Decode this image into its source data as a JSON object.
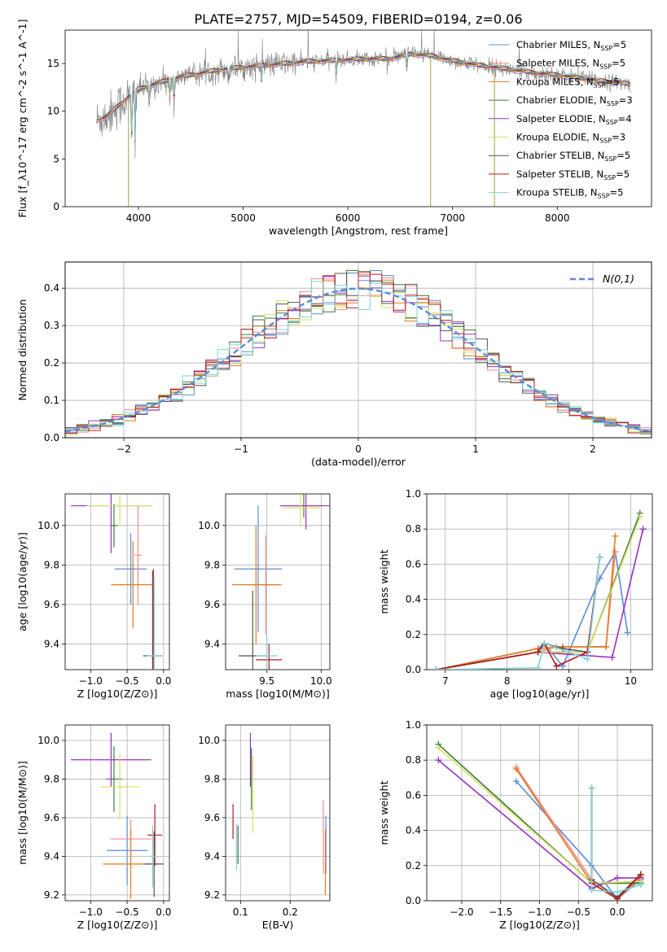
{
  "figure_title": "PLATE=2757, MJD=54509, FIBERID=0194, z=0.06",
  "colors": {
    "chabrier_miles": "#5b8bd6",
    "salpeter_miles": "#f28c8c",
    "kroupa_miles": "#e07a1f",
    "chabrier_elodie": "#3a7a3a",
    "salpeter_elodie": "#9b30c0",
    "kroupa_elodie": "#d9e066",
    "chabrier_stelib": "#555555",
    "salpeter_stelib": "#b01c1c",
    "kroupa_stelib": "#7fd4d9",
    "spectrum": "#808080",
    "gaussian": "#5b8bd6"
  },
  "legend": [
    {
      "model": "Chabrier MILES",
      "n": "5",
      "color_key": "chabrier_miles"
    },
    {
      "model": "Salpeter MILES",
      "n": "5",
      "color_key": "salpeter_miles"
    },
    {
      "model": "Kroupa MILES",
      "n": "5",
      "color_key": "kroupa_miles"
    },
    {
      "model": "Chabrier ELODIE",
      "n": "3",
      "color_key": "chabrier_elodie"
    },
    {
      "model": "Salpeter ELODIE",
      "n": "4",
      "color_key": "salpeter_elodie"
    },
    {
      "model": "Kroupa ELODIE",
      "n": "3",
      "color_key": "kroupa_elodie"
    },
    {
      "model": "Chabrier STELIB",
      "n": "5",
      "color_key": "chabrier_stelib"
    },
    {
      "model": "Salpeter STELIB",
      "n": "5",
      "color_key": "salpeter_stelib"
    },
    {
      "model": "Kroupa STELIB",
      "n": "5",
      "color_key": "kroupa_stelib"
    }
  ],
  "chart_data": [
    {
      "id": "spectrum",
      "type": "line",
      "xlabel": "wavelength [Angstrom, rest frame]",
      "ylabel": "Flux [f_λ10^-17 erg cm^-2 s^-1 A^-1]",
      "xlim": [
        3300,
        8900
      ],
      "ylim": [
        0,
        18.5
      ],
      "xticks": [
        4000,
        5000,
        6000,
        7000,
        8000
      ],
      "yticks": [
        0,
        5,
        10,
        15
      ],
      "grid": false,
      "legend_position": "right",
      "continuum": [
        [
          3600,
          9.0
        ],
        [
          3700,
          9.5
        ],
        [
          3800,
          10.5
        ],
        [
          3900,
          11.5
        ],
        [
          4000,
          12.3
        ],
        [
          4200,
          13.0
        ],
        [
          4400,
          13.6
        ],
        [
          4600,
          14.0
        ],
        [
          4800,
          14.4
        ],
        [
          5000,
          14.6
        ],
        [
          5200,
          14.8
        ],
        [
          5400,
          15.0
        ],
        [
          5600,
          15.2
        ],
        [
          5800,
          15.3
        ],
        [
          6000,
          15.4
        ],
        [
          6200,
          15.5
        ],
        [
          6400,
          15.5
        ],
        [
          6600,
          16.0
        ],
        [
          6800,
          15.8
        ],
        [
          7000,
          15.3
        ],
        [
          7200,
          14.9
        ],
        [
          7400,
          14.6
        ],
        [
          7600,
          14.3
        ],
        [
          7800,
          14.0
        ],
        [
          8000,
          13.8
        ],
        [
          8200,
          13.5
        ],
        [
          8400,
          13.2
        ],
        [
          8600,
          13.0
        ],
        [
          8700,
          12.8
        ]
      ],
      "dips": [
        [
          3934,
          5.5
        ],
        [
          3968,
          6.0
        ],
        [
          4102,
          10.0
        ],
        [
          4300,
          11.0
        ],
        [
          4340,
          9.5
        ],
        [
          4861,
          12.5
        ],
        [
          5175,
          12.8
        ],
        [
          5890,
          13.5
        ],
        [
          6563,
          14.0
        ]
      ],
      "spikes": [
        [
          3905,
          0.0
        ],
        [
          6790,
          0.0
        ],
        [
          7400,
          0.0
        ]
      ]
    },
    {
      "id": "residuals",
      "type": "histogram",
      "xlabel": "(data-model)/error",
      "ylabel": "Normed distribution",
      "xlim": [
        -2.5,
        2.5
      ],
      "ylim": [
        0,
        0.47
      ],
      "xticks": [
        -2,
        -1,
        0,
        1,
        2
      ],
      "yticks": [
        0.0,
        0.1,
        0.2,
        0.3,
        0.4
      ],
      "grid": true,
      "legend": "N(0,1)",
      "legend_position": "top-right",
      "bin_width": 0.1
    },
    {
      "id": "age_vs_z",
      "type": "errorbar",
      "xlabel": "Z [log10(Z/Z⊙)]",
      "ylabel": "age [log10(age/yr)]",
      "xlim": [
        -1.35,
        0.08
      ],
      "ylim": [
        9.27,
        10.16
      ],
      "xticks": [
        -1.0,
        -0.5,
        0.0
      ],
      "yticks": [
        9.4,
        9.6,
        9.8,
        10.0
      ],
      "grid": true,
      "points": [
        {
          "c": "chabrier_miles",
          "x": -0.45,
          "xe": 0.22,
          "y": 9.78,
          "ye": 0.18
        },
        {
          "c": "salpeter_miles",
          "x": -0.35,
          "xe": 0.05,
          "y": 9.85,
          "ye": 0.25
        },
        {
          "c": "kroupa_miles",
          "x": -0.42,
          "xe": 0.3,
          "y": 9.7,
          "ye": 0.22
        },
        {
          "c": "chabrier_elodie",
          "x": -0.68,
          "xe": 0.05,
          "y": 10.0,
          "ye": 0.11
        },
        {
          "c": "salpeter_elodie",
          "x": -0.72,
          "xe": 0.55,
          "y": 10.1,
          "ye": 0.24
        },
        {
          "c": "kroupa_elodie",
          "x": -0.6,
          "xe": 0.45,
          "y": 10.1,
          "ye": 0.1
        },
        {
          "c": "chabrier_stelib",
          "x": -0.15,
          "xe": 0.13,
          "y": 9.34,
          "ye": 0.43
        },
        {
          "c": "salpeter_stelib",
          "x": -0.14,
          "xe": 0.02,
          "y": 9.33,
          "ye": 0.45
        },
        {
          "c": "kroupa_stelib",
          "x": -0.13,
          "xe": 0.1,
          "y": 9.34,
          "ye": 0.4
        }
      ]
    },
    {
      "id": "age_vs_mass",
      "type": "errorbar",
      "xlabel": "mass [log10(M/M⊙)]",
      "ylabel": "",
      "xlim": [
        9.12,
        10.08
      ],
      "ylim": [
        9.27,
        10.16
      ],
      "xticks": [
        9.5,
        10.0
      ],
      "yticks": [
        9.4,
        9.6,
        9.8,
        10.0
      ],
      "grid": true,
      "points": [
        {
          "c": "chabrier_miles",
          "x": 9.42,
          "xe": 0.22,
          "y": 9.78,
          "ye": 0.32
        },
        {
          "c": "salpeter_miles",
          "x": 9.49,
          "xe": 0.15,
          "y": 9.7,
          "ye": 0.25
        },
        {
          "c": "kroupa_miles",
          "x": 9.4,
          "xe": 0.22,
          "y": 9.7,
          "ye": 0.3
        },
        {
          "c": "chabrier_elodie",
          "x": 9.84,
          "xe": 0.18,
          "y": 10.1,
          "ye": 0.06
        },
        {
          "c": "salpeter_elodie",
          "x": 9.86,
          "xe": 0.24,
          "y": 10.1,
          "ye": 0.12
        },
        {
          "c": "kroupa_elodie",
          "x": 9.81,
          "xe": 0.18,
          "y": 10.09,
          "ye": 0.09
        },
        {
          "c": "chabrier_stelib",
          "x": 9.37,
          "xe": 0.13,
          "y": 9.34,
          "ye": 0.33
        },
        {
          "c": "salpeter_stelib",
          "x": 9.52,
          "xe": 0.12,
          "y": 9.32,
          "ye": 0.08
        },
        {
          "c": "kroupa_stelib",
          "x": 9.5,
          "xe": 0.1,
          "y": 9.34,
          "ye": 0.1
        }
      ]
    },
    {
      "id": "weight_vs_age",
      "type": "line",
      "xlabel": "age [log10(age/yr)]",
      "ylabel": "mass weight",
      "xlim": [
        6.7,
        10.35
      ],
      "ylim": [
        0,
        1.0
      ],
      "xticks": [
        7,
        8,
        9,
        10
      ],
      "yticks": [
        0.0,
        0.2,
        0.4,
        0.6,
        0.8,
        1.0
      ],
      "grid": true,
      "series": [
        {
          "c": "chabrier_miles",
          "pts": [
            [
              6.85,
              0.0
            ],
            [
              8.5,
              0.12
            ],
            [
              8.6,
              0.15
            ],
            [
              8.9,
              0.02
            ],
            [
              9.5,
              0.52
            ],
            [
              9.75,
              0.67
            ],
            [
              9.95,
              0.21
            ]
          ]
        },
        {
          "c": "salpeter_miles",
          "pts": [
            [
              6.85,
              0.0
            ],
            [
              8.5,
              0.1
            ],
            [
              8.8,
              0.13
            ],
            [
              9.6,
              0.13
            ],
            [
              9.75,
              0.67
            ]
          ]
        },
        {
          "c": "kroupa_miles",
          "pts": [
            [
              6.85,
              0.0
            ],
            [
              8.5,
              0.12
            ],
            [
              8.9,
              0.13
            ],
            [
              9.6,
              0.13
            ],
            [
              9.75,
              0.76
            ]
          ]
        },
        {
          "c": "chabrier_elodie",
          "pts": [
            [
              6.85,
              0.0
            ],
            [
              8.5,
              0.1
            ],
            [
              9.3,
              0.1
            ],
            [
              10.15,
              0.89
            ]
          ]
        },
        {
          "c": "salpeter_elodie",
          "pts": [
            [
              6.85,
              0.0
            ],
            [
              8.5,
              0.1
            ],
            [
              9.7,
              0.07
            ],
            [
              10.2,
              0.8
            ]
          ]
        },
        {
          "c": "kroupa_elodie",
          "pts": [
            [
              6.85,
              0.0
            ],
            [
              8.5,
              0.1
            ],
            [
              9.3,
              0.1
            ],
            [
              10.15,
              0.87
            ]
          ]
        },
        {
          "c": "chabrier_stelib",
          "pts": [
            [
              6.85,
              0.0
            ],
            [
              8.5,
              0.1
            ],
            [
              8.6,
              0.15
            ],
            [
              8.9,
              0.12
            ],
            [
              9.3,
              0.1
            ],
            [
              9.5,
              0.64
            ]
          ]
        },
        {
          "c": "salpeter_stelib",
          "pts": [
            [
              6.85,
              0.0
            ],
            [
              8.5,
              0.1
            ],
            [
              8.6,
              0.15
            ],
            [
              8.8,
              0.02
            ],
            [
              9.3,
              0.1
            ],
            [
              9.5,
              0.64
            ]
          ]
        },
        {
          "c": "kroupa_stelib",
          "pts": [
            [
              6.85,
              0.0
            ],
            [
              8.5,
              0.01
            ],
            [
              8.6,
              0.15
            ],
            [
              9.3,
              0.06
            ],
            [
              9.5,
              0.64
            ]
          ]
        }
      ]
    },
    {
      "id": "mass_vs_z",
      "type": "errorbar",
      "xlabel": "Z [log10(Z/Z⊙)]",
      "ylabel": "mass [log10(M/M⊙)]",
      "xlim": [
        -1.35,
        0.08
      ],
      "ylim": [
        9.17,
        10.08
      ],
      "xticks": [
        -1.0,
        -0.5,
        0.0
      ],
      "yticks": [
        9.2,
        9.4,
        9.6,
        9.8,
        10.0
      ],
      "grid": true,
      "points": [
        {
          "c": "chabrier_miles",
          "x": -0.5,
          "xe": 0.28,
          "y": 9.43,
          "ye": 0.18
        },
        {
          "c": "salpeter_miles",
          "x": -0.45,
          "xe": 0.28,
          "y": 9.49,
          "ye": 0.1
        },
        {
          "c": "kroupa_miles",
          "x": -0.45,
          "xe": 0.38,
          "y": 9.36,
          "ye": 0.18
        },
        {
          "c": "chabrier_elodie",
          "x": -0.68,
          "xe": 0.11,
          "y": 9.8,
          "ye": 0.17
        },
        {
          "c": "salpeter_elodie",
          "x": -0.72,
          "xe": 0.55,
          "y": 9.9,
          "ye": 0.14
        },
        {
          "c": "kroupa_elodie",
          "x": -0.6,
          "xe": 0.27,
          "y": 9.76,
          "ye": 0.17
        },
        {
          "c": "chabrier_stelib",
          "x": -0.13,
          "xe": 0.13,
          "y": 9.36,
          "ye": 0.17
        },
        {
          "c": "salpeter_stelib",
          "x": -0.12,
          "xe": 0.1,
          "y": 9.51,
          "ye": 0.16
        },
        {
          "c": "kroupa_stelib",
          "x": -0.15,
          "xe": 0.05,
          "y": 9.4,
          "ye": 0.16
        }
      ]
    },
    {
      "id": "mass_vs_ebv",
      "type": "errorbar",
      "xlabel": "E(B-V)",
      "ylabel": "",
      "xlim": [
        0.07,
        0.28
      ],
      "ylim": [
        9.17,
        10.08
      ],
      "xticks": [
        0.1,
        0.2
      ],
      "yticks": [
        9.2,
        9.4,
        9.6,
        9.8,
        10.0
      ],
      "grid": true,
      "points": [
        {
          "c": "chabrier_miles",
          "x": 0.272,
          "xe": 0.0,
          "y": 9.46,
          "ye": 0.15
        },
        {
          "c": "salpeter_miles",
          "x": 0.267,
          "xe": 0.0,
          "y": 9.5,
          "ye": 0.19
        },
        {
          "c": "kroupa_miles",
          "x": 0.271,
          "xe": 0.0,
          "y": 9.37,
          "ye": 0.17
        },
        {
          "c": "chabrier_elodie",
          "x": 0.122,
          "xe": 0.0,
          "y": 9.8,
          "ye": 0.16
        },
        {
          "c": "salpeter_elodie",
          "x": 0.12,
          "xe": 0.0,
          "y": 9.9,
          "ye": 0.14
        },
        {
          "c": "kroupa_elodie",
          "x": 0.125,
          "xe": 0.0,
          "y": 9.72,
          "ye": 0.2
        },
        {
          "c": "chabrier_stelib",
          "x": 0.095,
          "xe": 0.0,
          "y": 9.46,
          "ye": 0.1
        },
        {
          "c": "salpeter_stelib",
          "x": 0.085,
          "xe": 0.0,
          "y": 9.58,
          "ye": 0.09
        },
        {
          "c": "kroupa_stelib",
          "x": 0.092,
          "xe": 0.0,
          "y": 9.45,
          "ye": 0.12
        }
      ]
    },
    {
      "id": "weight_vs_z",
      "type": "line",
      "xlabel": "Z [log10(Z/Z⊙)]",
      "ylabel": "mass weight",
      "xlim": [
        -2.45,
        0.45
      ],
      "ylim": [
        0,
        1.0
      ],
      "xticks": [
        -2.0,
        -1.5,
        -1.0,
        -0.5,
        0.0
      ],
      "yticks": [
        0.0,
        0.2,
        0.4,
        0.6,
        0.8,
        1.0
      ],
      "grid": true,
      "series": [
        {
          "c": "chabrier_miles",
          "pts": [
            [
              -1.3,
              0.68
            ],
            [
              -0.33,
              0.2
            ],
            [
              0.0,
              0.01
            ],
            [
              0.3,
              0.12
            ]
          ]
        },
        {
          "c": "salpeter_miles",
          "pts": [
            [
              -1.3,
              0.76
            ],
            [
              -0.33,
              0.12
            ],
            [
              0.0,
              0.01
            ],
            [
              0.3,
              0.13
            ]
          ]
        },
        {
          "c": "kroupa_miles",
          "pts": [
            [
              -1.3,
              0.75
            ],
            [
              -0.33,
              0.1
            ],
            [
              0.0,
              0.01
            ],
            [
              0.3,
              0.14
            ]
          ]
        },
        {
          "c": "chabrier_elodie",
          "pts": [
            [
              -2.3,
              0.89
            ],
            [
              -0.33,
              0.1
            ],
            [
              0.3,
              0.1
            ]
          ]
        },
        {
          "c": "salpeter_elodie",
          "pts": [
            [
              -2.3,
              0.8
            ],
            [
              -0.33,
              0.07
            ],
            [
              0.0,
              0.13
            ],
            [
              0.3,
              0.13
            ]
          ]
        },
        {
          "c": "kroupa_elodie",
          "pts": [
            [
              -2.3,
              0.87
            ],
            [
              -0.33,
              0.1
            ],
            [
              0.3,
              0.11
            ]
          ]
        },
        {
          "c": "chabrier_stelib",
          "pts": [
            [
              -0.33,
              0.64
            ],
            [
              -0.33,
              0.12
            ],
            [
              0.0,
              0.02
            ],
            [
              0.3,
              0.15
            ]
          ]
        },
        {
          "c": "salpeter_stelib",
          "pts": [
            [
              -0.33,
              0.64
            ],
            [
              -0.33,
              0.1
            ],
            [
              0.0,
              0.01
            ],
            [
              0.3,
              0.15
            ]
          ]
        },
        {
          "c": "kroupa_stelib",
          "pts": [
            [
              -0.33,
              0.64
            ],
            [
              -0.33,
              0.06
            ],
            [
              0.0,
              0.05
            ],
            [
              0.3,
              0.09
            ]
          ]
        }
      ]
    }
  ]
}
